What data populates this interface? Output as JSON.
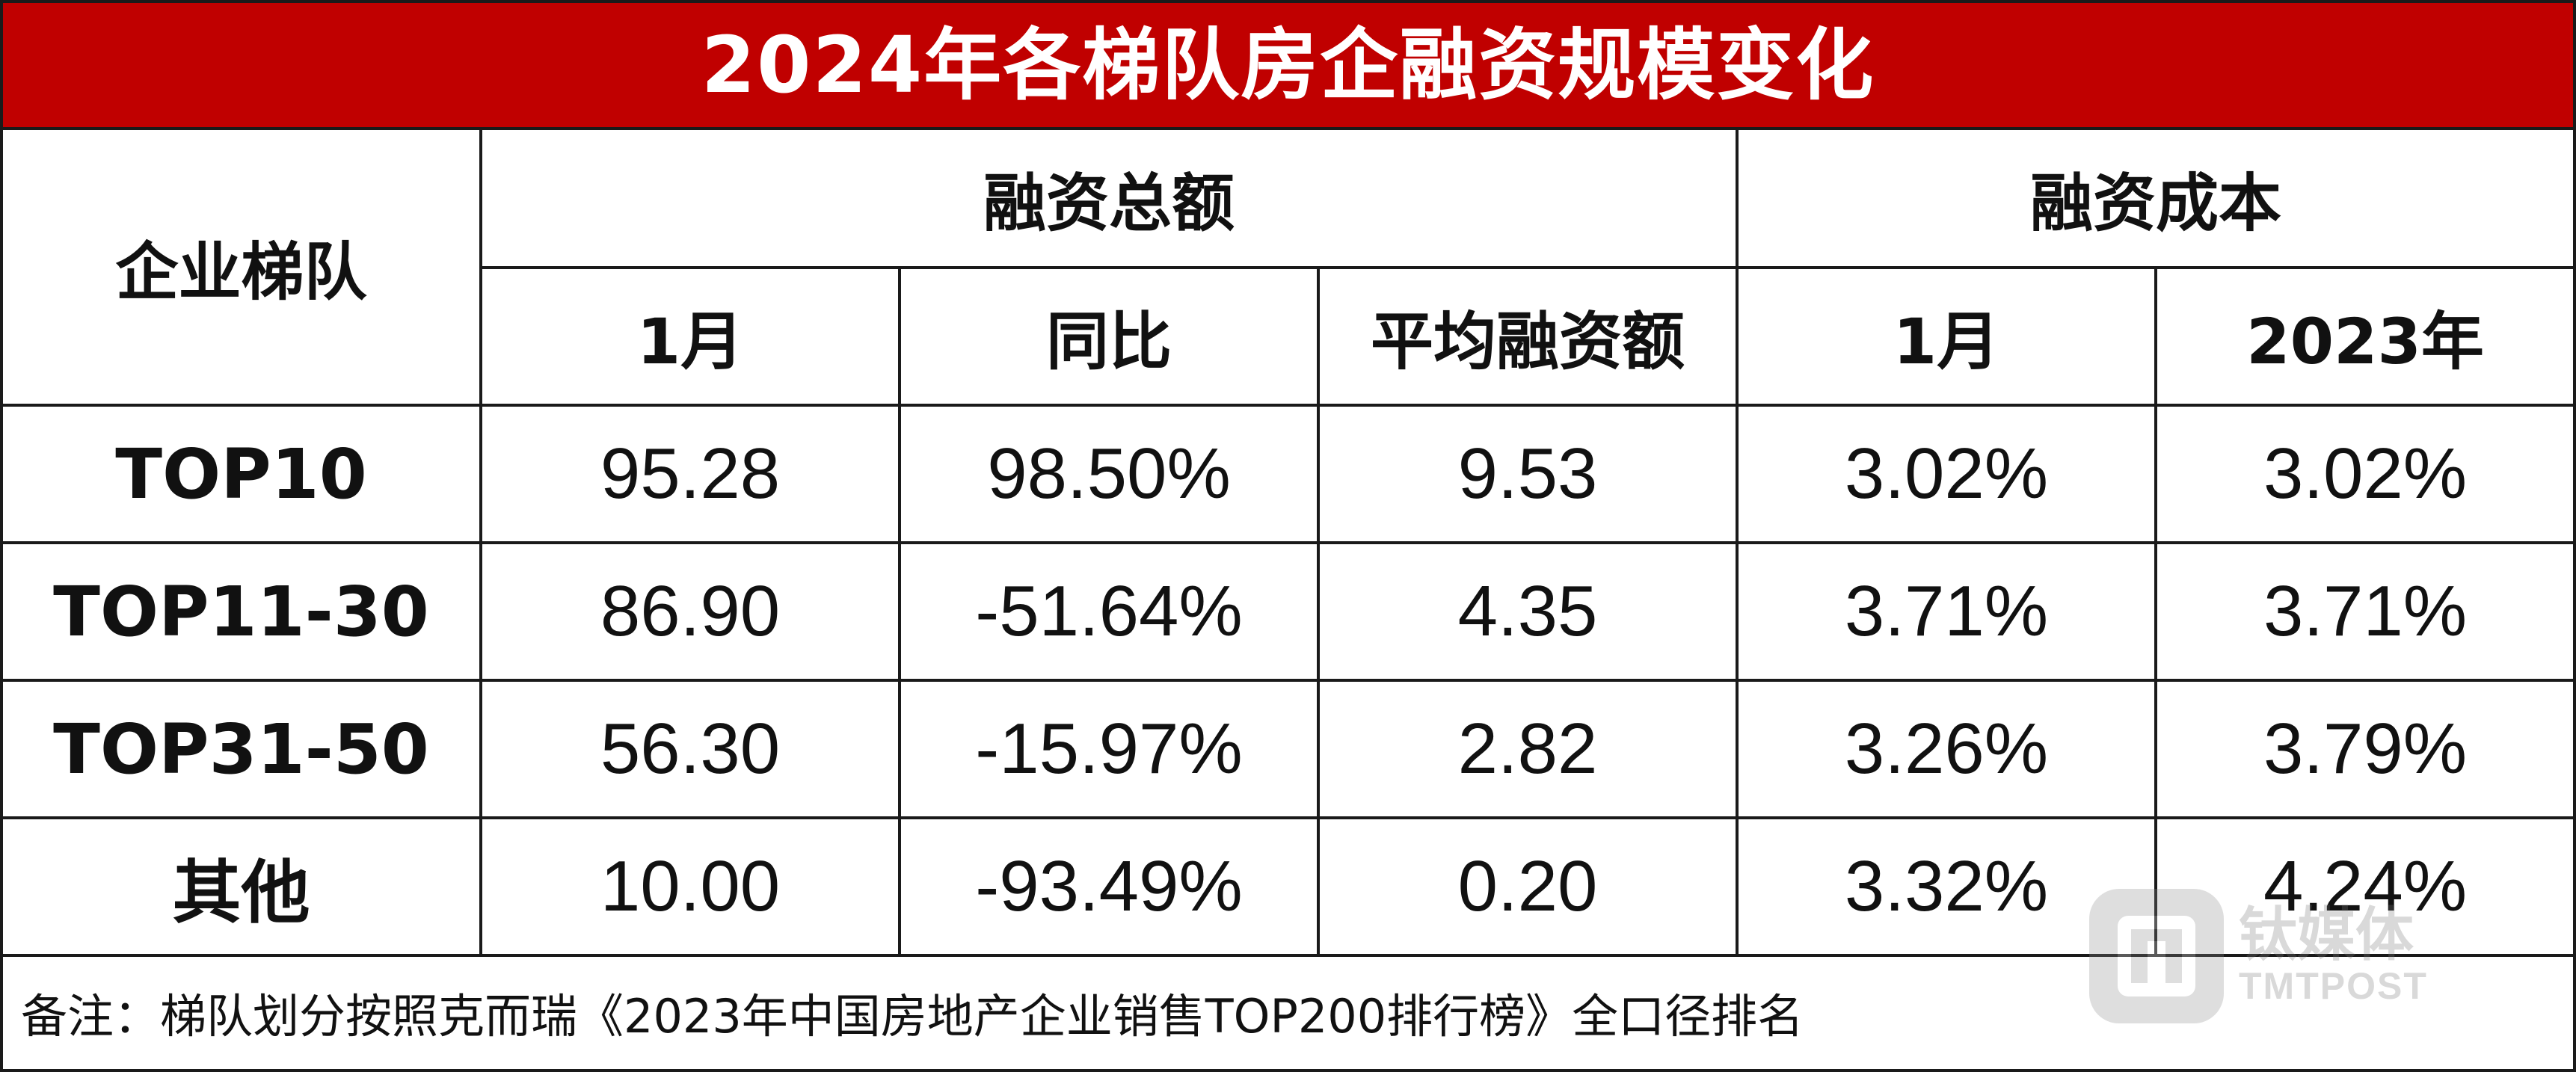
{
  "title": "2024年各梯队房企融资规模变化",
  "headers": {
    "tier": "企业梯队",
    "group_total": "融资总额",
    "group_cost": "融资成本",
    "total_jan": "1月",
    "total_yoy": "同比",
    "total_avg": "平均融资额",
    "cost_jan": "1月",
    "cost_2023": "2023年"
  },
  "rows": [
    {
      "tier": "TOP10",
      "total_jan": "95.28",
      "yoy": "98.50%",
      "avg": "9.53",
      "cost_jan": "3.02%",
      "cost_2023": "3.02%"
    },
    {
      "tier": "TOP11-30",
      "total_jan": "86.90",
      "yoy": "-51.64%",
      "avg": "4.35",
      "cost_jan": "3.71%",
      "cost_2023": "3.71%"
    },
    {
      "tier": "TOP31-50",
      "total_jan": "56.30",
      "yoy": "-15.97%",
      "avg": "2.82",
      "cost_jan": "3.26%",
      "cost_2023": "3.79%"
    },
    {
      "tier": "其他",
      "total_jan": "10.00",
      "yoy": "-93.49%",
      "avg": "0.20",
      "cost_jan": "3.32%",
      "cost_2023": "4.24%"
    }
  ],
  "note": "备注：梯队划分按照克而瑞《2023年中国房地产企业销售TOP200排行榜》全口径排名",
  "watermark": {
    "cn": "钛媒体",
    "en": "TMTPOST"
  },
  "colors": {
    "title_bg": "#c00000",
    "title_text": "#ffffff",
    "grid": "#1a1a1a"
  }
}
